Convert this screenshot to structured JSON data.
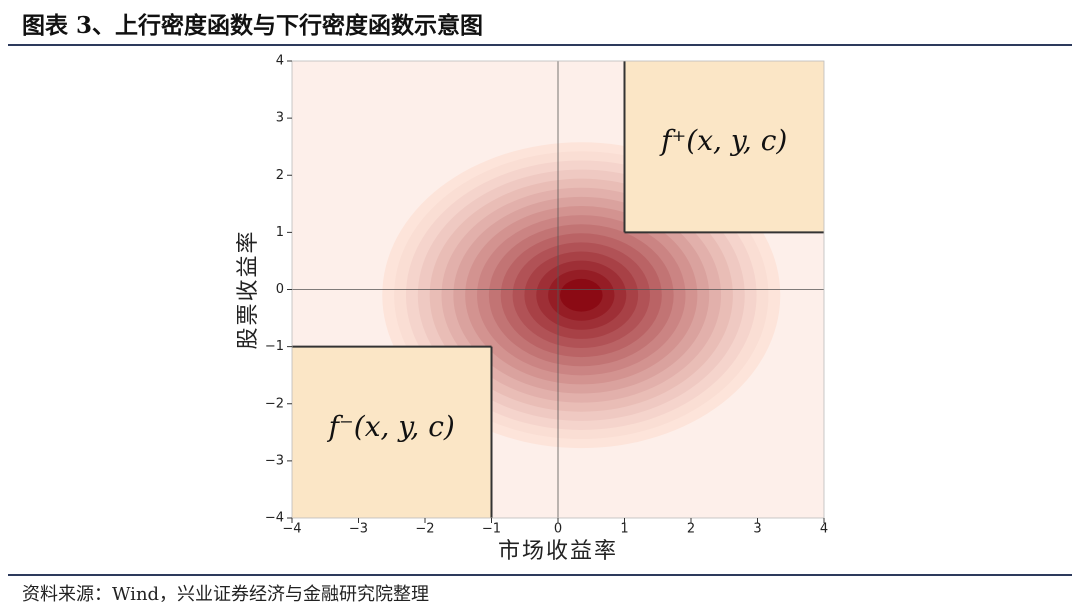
{
  "chart_data": {
    "type": "density",
    "title": "图表 3、上行密度函数与下行密度函数示意图",
    "x_label": "市场收益率",
    "y_label": "股票收益率",
    "source": "资料来源：Wind，兴业证券经济与金融研究院整理",
    "xlim": [
      -4,
      4
    ],
    "ylim": [
      -4,
      4
    ],
    "xticks": [
      {
        "value": -4,
        "label": "−4"
      },
      {
        "value": -3,
        "label": "−3"
      },
      {
        "value": -2,
        "label": "−2"
      },
      {
        "value": -1,
        "label": "−1"
      },
      0,
      1,
      2,
      3,
      4
    ],
    "yticks": [
      {
        "value": -4,
        "label": "−4"
      },
      {
        "value": -3,
        "label": "−3"
      },
      {
        "value": -2,
        "label": "−2"
      },
      {
        "value": -1,
        "label": "−1"
      },
      0,
      1,
      2,
      3,
      4
    ],
    "density": {
      "center_x": 0.35,
      "center_y": -0.1,
      "sd_x": 0.95,
      "sd_y": 0.85,
      "color": "#8b0a14"
    },
    "regions": [
      {
        "label": "f⁺(x, y, c)",
        "x": [
          1,
          4
        ],
        "y": [
          1,
          4
        ],
        "color": "#fbe6c6"
      },
      {
        "label": "f⁻(x, y, c)",
        "x": [
          -4,
          -1
        ],
        "y": [
          -4,
          -1
        ],
        "color": "#fbe6c6"
      }
    ]
  }
}
